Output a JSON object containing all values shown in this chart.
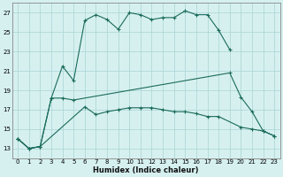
{
  "xlabel": "Humidex (Indice chaleur)",
  "background_color": "#d6f0f0",
  "grid_color": "#b0d8d8",
  "line_color": "#1a6b5a",
  "xlim": [
    -0.5,
    23.5
  ],
  "ylim": [
    12,
    28
  ],
  "xticks": [
    0,
    1,
    2,
    3,
    4,
    5,
    6,
    7,
    8,
    9,
    10,
    11,
    12,
    13,
    14,
    15,
    16,
    17,
    18,
    19,
    20,
    21,
    22,
    23
  ],
  "yticks": [
    13,
    15,
    17,
    19,
    21,
    23,
    25,
    27
  ],
  "line1_x": [
    0,
    1,
    2,
    3,
    4,
    5,
    6,
    7,
    8,
    9,
    10,
    11,
    12,
    13,
    14,
    15,
    16,
    17,
    18,
    19
  ],
  "line1_y": [
    14.0,
    13.0,
    13.2,
    18.2,
    21.5,
    20.0,
    26.2,
    26.8,
    26.3,
    25.3,
    27.0,
    26.8,
    26.3,
    26.5,
    26.5,
    27.2,
    26.8,
    26.8,
    25.2,
    23.2
  ],
  "line2_x": [
    0,
    1,
    2,
    3,
    4,
    5,
    19,
    20,
    21,
    22,
    23
  ],
  "line2_y": [
    14.0,
    13.0,
    13.2,
    18.2,
    18.2,
    18.0,
    20.8,
    18.3,
    16.8,
    14.8,
    14.3
  ],
  "line3_x": [
    0,
    1,
    2,
    6,
    7,
    8,
    9,
    10,
    11,
    12,
    13,
    14,
    15,
    16,
    17,
    18,
    20,
    21,
    22,
    23
  ],
  "line3_y": [
    14.0,
    13.0,
    13.2,
    17.3,
    16.5,
    16.8,
    17.0,
    17.2,
    17.2,
    17.2,
    17.0,
    16.8,
    16.8,
    16.6,
    16.3,
    16.3,
    15.2,
    15.0,
    14.8,
    14.3
  ]
}
